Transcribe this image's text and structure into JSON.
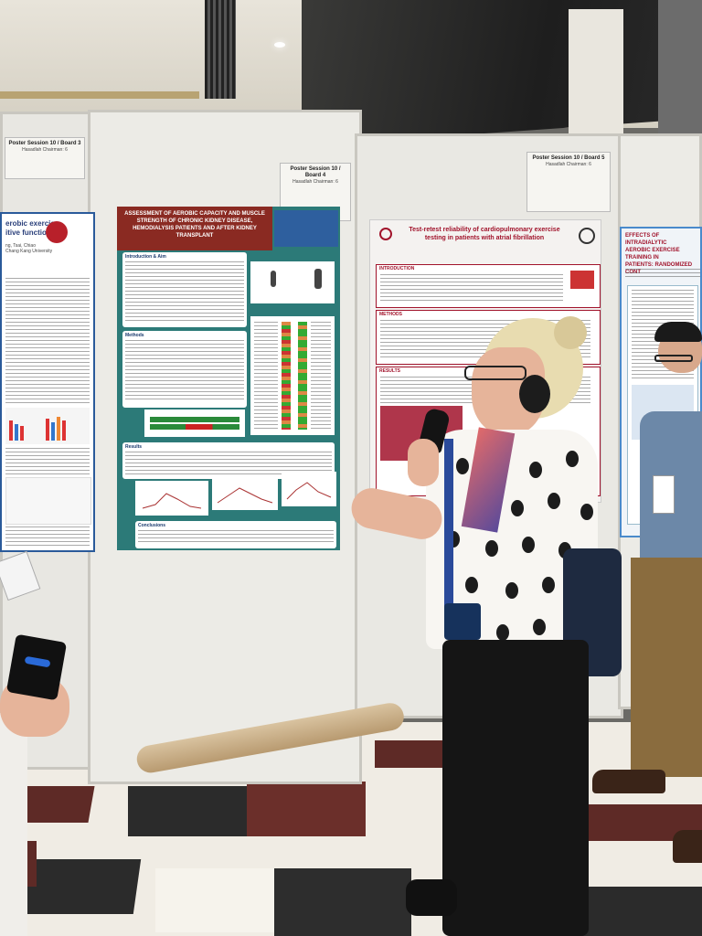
{
  "scene": {
    "description_free": true
  },
  "labels": {
    "left_board": {
      "line1": "Poster Session 10 / Board 3",
      "line2": "Hasadlah Chairman: 6"
    },
    "center_board": {
      "line1": "Poster Session 10 / Board 4",
      "line2": "Hasadlah Chairman: 6"
    },
    "right_board": {
      "line1": "Poster Session 10 / Board 5",
      "line2": "Hasadlah Chairman: 6"
    }
  },
  "poster_left": {
    "title_frag1": "erobic exercise",
    "title_frag2": "itive function",
    "authors_frag": "ng, Tsai, Chiao",
    "affil_frag": "Chang Kang University"
  },
  "poster_center": {
    "title": "ASSESSMENT OF AEROBIC CAPACITY AND MUSCLE STRENGTH OF CHRONIC KIDNEY DISEASE, HEMODIALYSIS PATIENTS AND AFTER KIDNEY TRANSPLANT",
    "intro_heading": "Introduction & Aim",
    "methods_heading": "Methods",
    "results_heading": "Results",
    "conclusions_heading": "Conclusions"
  },
  "poster_right": {
    "title": "Test-retest reliability of cardiopulmonary exercise testing in patients with atrial fibrillation",
    "introduction_heading": "INTRODUCTION",
    "methods_heading": "METHODS",
    "results_heading": "RESULTS"
  },
  "poster_far_right": {
    "title_frag1": "EFFECTS OF INTRADIALYTIC",
    "title_frag2": "AEROBIC EXERCISE TRAINING IN",
    "title_frag3": "PATIENTS: RANDOMIZED CONT"
  },
  "colors": {
    "center_poster_bg": "#2c7a78",
    "center_title_bg": "#8a2a22",
    "right_poster_accent": "#a1132b",
    "floor_dark": "#6b2f2a"
  }
}
